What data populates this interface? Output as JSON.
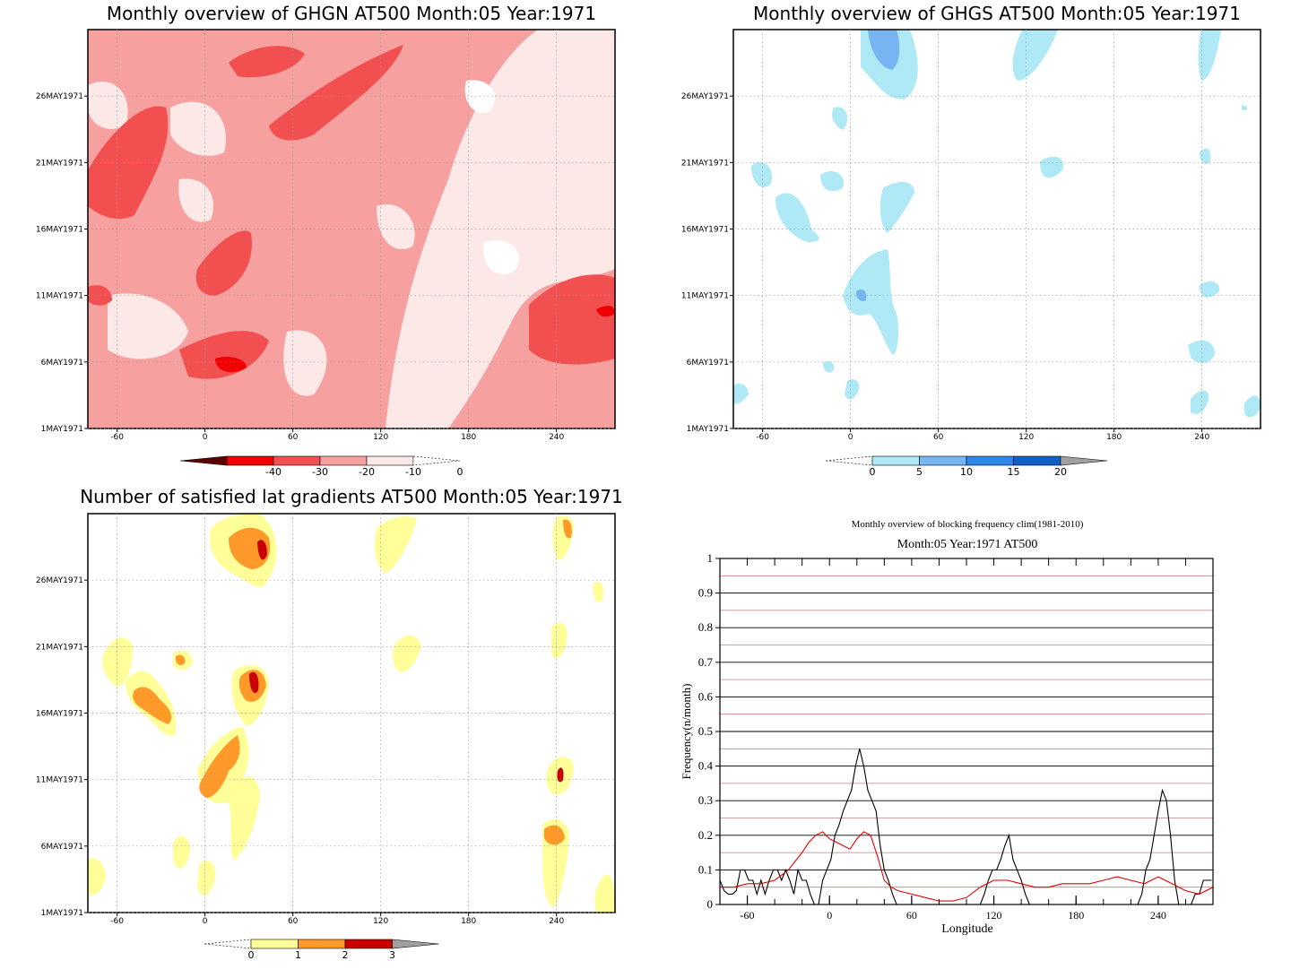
{
  "colors": {
    "red_scale": [
      "#5a0000",
      "#f00000",
      "#f25050",
      "#f7a0a0",
      "#fde8e8",
      "#ffffff"
    ],
    "blue_scale": [
      "#ffffff",
      "#aee9f5",
      "#76b4f2",
      "#2e86e8",
      "#1060c8",
      "#a0a0a0"
    ],
    "yellow_scale": [
      "#ffffff",
      "#ffff99",
      "#ff9a2a",
      "#c80000",
      "#a0a0a0"
    ],
    "freq_black": "#000000",
    "freq_red": "#e00000",
    "grid_pink": "#c08080"
  },
  "chart_data": [
    {
      "type": "heatmap",
      "title": "Monthly overview of GHGN AT500 Month:05 Year:1971",
      "x_ticks": [
        "-60",
        "0",
        "60",
        "120",
        "180",
        "240"
      ],
      "y_ticks": [
        "1MAY1971",
        "6MAY1971",
        "11MAY1971",
        "16MAY1971",
        "21MAY1971",
        "26MAY1971"
      ],
      "xlim": [
        -80,
        280
      ],
      "ylim_days": [
        1,
        31
      ],
      "colorbar": {
        "labels": [
          "-40",
          "-30",
          "-20",
          "-10",
          "0"
        ]
      }
    },
    {
      "type": "heatmap",
      "title": "Monthly overview of GHGS AT500 Month:05 Year:1971",
      "x_ticks": [
        "-60",
        "0",
        "60",
        "120",
        "180",
        "240"
      ],
      "y_ticks": [
        "1MAY1971",
        "6MAY1971",
        "11MAY1971",
        "16MAY1971",
        "21MAY1971",
        "26MAY1971"
      ],
      "xlim": [
        -80,
        280
      ],
      "ylim_days": [
        1,
        31
      ],
      "colorbar": {
        "labels": [
          "0",
          "5",
          "10",
          "15",
          "20"
        ]
      }
    },
    {
      "type": "heatmap",
      "title": "Number of satisfied lat gradients AT500 Month:05 Year:1971",
      "x_ticks": [
        "-60",
        "0",
        "60",
        "120",
        "180",
        "240"
      ],
      "y_ticks": [
        "1MAY1971",
        "6MAY1971",
        "11MAY1971",
        "16MAY1971",
        "21MAY1971",
        "26MAY1971"
      ],
      "xlim": [
        -80,
        280
      ],
      "ylim_days": [
        1,
        31
      ],
      "colorbar": {
        "labels": [
          "0",
          "1",
          "2",
          "3"
        ]
      }
    },
    {
      "type": "line",
      "title": "Monthly overview of blocking frequency clim(1981-2010)",
      "subtitle": "Month:05 Year:1971  AT500",
      "xlabel": "Longitude",
      "ylabel": "Frequency(n/month)",
      "xlim": [
        -80,
        280
      ],
      "ylim": [
        0,
        1
      ],
      "x_ticks": [
        "-60",
        "0",
        "60",
        "120",
        "180",
        "240"
      ],
      "y_ticks": [
        "0",
        "0.1",
        "0.2",
        "0.3",
        "0.4",
        "0.5",
        "0.6",
        "0.7",
        "0.8",
        "0.9",
        "1"
      ],
      "series": [
        {
          "x": [
            -80,
            -77,
            -74,
            -71,
            -68,
            -65,
            -62,
            -59,
            -56,
            -53,
            -50,
            -47,
            -44,
            -41,
            -38,
            -35,
            -32,
            -29,
            -26,
            -23,
            -20,
            -17,
            -14,
            -11,
            -8,
            -5,
            -2,
            1,
            4,
            7,
            10,
            13,
            16,
            19,
            22,
            25,
            28,
            31,
            34,
            37,
            40,
            43,
            46,
            49,
            52,
            55,
            110,
            113,
            116,
            119,
            122,
            125,
            128,
            131,
            134,
            137,
            140,
            143,
            146,
            149,
            225,
            228,
            231,
            234,
            237,
            240,
            243,
            246,
            249,
            252,
            255,
            258,
            261,
            264,
            267,
            270,
            273,
            276,
            279
          ],
          "values": [
            0.07,
            0.04,
            0.03,
            0.03,
            0.04,
            0.1,
            0.1,
            0.07,
            0.07,
            0.03,
            0.07,
            0.03,
            0.07,
            0.1,
            0.1,
            0.07,
            0.1,
            0.07,
            0.03,
            0.1,
            0.07,
            0.07,
            0.03,
            0.0,
            0.0,
            0.07,
            0.1,
            0.13,
            0.2,
            0.23,
            0.27,
            0.3,
            0.33,
            0.4,
            0.45,
            0.4,
            0.33,
            0.3,
            0.27,
            0.17,
            0.1,
            0.07,
            0.03,
            0.0,
            0.0,
            0.0,
            0.0,
            0.03,
            0.07,
            0.1,
            0.1,
            0.13,
            0.17,
            0.2,
            0.13,
            0.1,
            0.07,
            0.03,
            0.0,
            0.0,
            0.0,
            0.03,
            0.1,
            0.13,
            0.2,
            0.27,
            0.33,
            0.3,
            0.2,
            0.07,
            0.0,
            0.0,
            0.0,
            0.0,
            0.03,
            0.03,
            0.07,
            0.07,
            0.07
          ]
        },
        {
          "x": [
            -80,
            -70,
            -60,
            -50,
            -40,
            -30,
            -20,
            -15,
            -10,
            -5,
            0,
            5,
            10,
            15,
            20,
            25,
            30,
            35,
            40,
            45,
            50,
            60,
            70,
            80,
            90,
            100,
            110,
            120,
            130,
            140,
            150,
            160,
            170,
            180,
            190,
            200,
            210,
            220,
            230,
            240,
            250,
            260,
            270,
            280
          ],
          "values": [
            0.05,
            0.05,
            0.06,
            0.06,
            0.07,
            0.1,
            0.15,
            0.18,
            0.2,
            0.21,
            0.19,
            0.18,
            0.17,
            0.16,
            0.19,
            0.21,
            0.2,
            0.14,
            0.07,
            0.05,
            0.04,
            0.03,
            0.02,
            0.01,
            0.01,
            0.02,
            0.05,
            0.07,
            0.07,
            0.06,
            0.05,
            0.05,
            0.06,
            0.06,
            0.06,
            0.07,
            0.08,
            0.07,
            0.06,
            0.08,
            0.06,
            0.04,
            0.03,
            0.05
          ]
        }
      ]
    }
  ]
}
